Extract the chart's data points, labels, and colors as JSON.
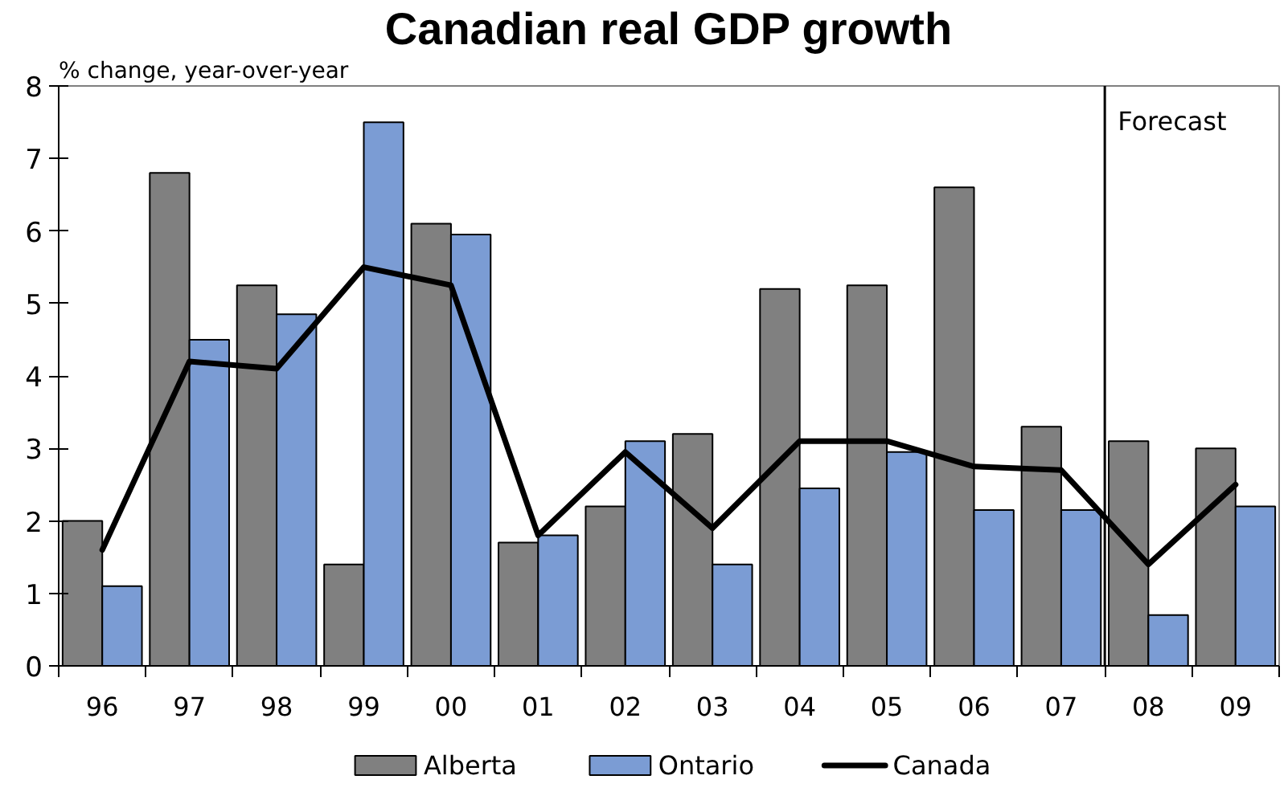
{
  "chart_data": {
    "type": "bar",
    "title": "Canadian real GDP growth",
    "ylabel": "% change, year-over-year",
    "categories": [
      "96",
      "97",
      "98",
      "99",
      "00",
      "01",
      "02",
      "03",
      "04",
      "05",
      "06",
      "07",
      "08",
      "09"
    ],
    "series": [
      {
        "name": "Alberta",
        "color": "#808080",
        "values": [
          2.0,
          6.8,
          5.25,
          1.4,
          6.1,
          1.7,
          2.2,
          3.2,
          5.2,
          5.25,
          6.6,
          3.3,
          3.1,
          3.0
        ]
      },
      {
        "name": "Ontario",
        "color": "#7b9cd4",
        "values": [
          1.1,
          4.5,
          4.85,
          7.5,
          5.95,
          1.8,
          3.1,
          1.4,
          2.45,
          2.95,
          2.15,
          2.15,
          0.7,
          2.2
        ]
      },
      {
        "name": "Canada",
        "type": "line",
        "color": "#000000",
        "values": [
          1.6,
          4.2,
          4.1,
          5.5,
          5.25,
          1.8,
          2.95,
          1.9,
          3.1,
          3.1,
          2.75,
          2.7,
          1.4,
          2.5
        ]
      }
    ],
    "ylim": [
      0,
      8
    ],
    "yticks": [
      0,
      1,
      2,
      3,
      4,
      5,
      6,
      7,
      8
    ],
    "grid": false,
    "legend": "bottom",
    "annotations": [
      "Forecast"
    ]
  }
}
